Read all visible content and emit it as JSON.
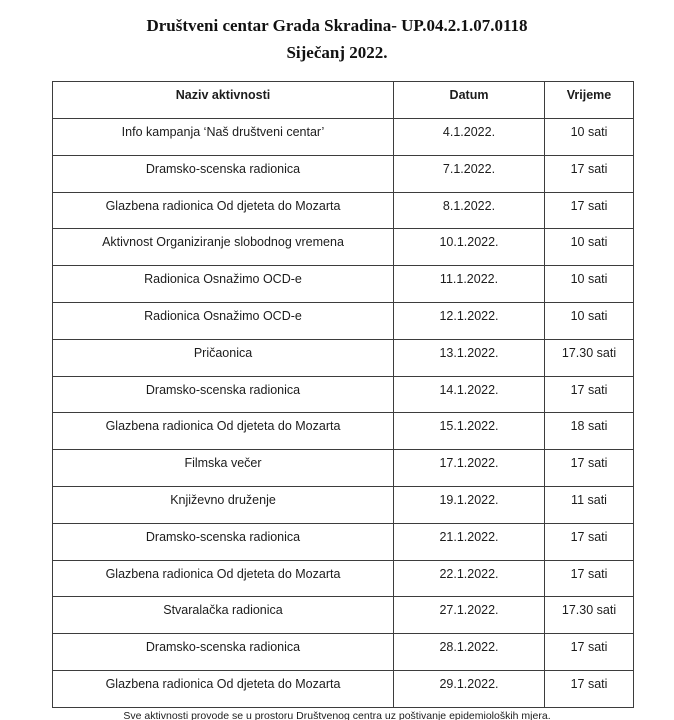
{
  "document": {
    "title_line1": "Društveni centar Grada Skradina- UP.04.2.1.07.0118",
    "title_line2": "Siječanj 2022.",
    "footer_note": "Sve aktivnosti provode se u prostoru Društvenog centra uz poštivanje epidemioloških mjera."
  },
  "table": {
    "columns": [
      "Naziv aktivnosti",
      "Datum",
      "Vrijeme"
    ],
    "column_keys": [
      "activity",
      "date",
      "time"
    ],
    "rows": [
      [
        "Info kampanja ‘Naš društveni centar’",
        "4.1.2022.",
        "10 sati"
      ],
      [
        "Dramsko-scenska radionica",
        "7.1.2022.",
        "17 sati"
      ],
      [
        "Glazbena radionica Od djeteta do Mozarta",
        "8.1.2022.",
        "17 sati"
      ],
      [
        "Aktivnost Organiziranje slobodnog vremena",
        "10.1.2022.",
        "10 sati"
      ],
      [
        "Radionica Osnažimo OCD-e",
        "11.1.2022.",
        "10 sati"
      ],
      [
        "Radionica Osnažimo OCD-e",
        "12.1.2022.",
        "10 sati"
      ],
      [
        "Pričaonica",
        "13.1.2022.",
        "17.30 sati"
      ],
      [
        "Dramsko-scenska radionica",
        "14.1.2022.",
        "17 sati"
      ],
      [
        "Glazbena radionica Od djeteta do Mozarta",
        "15.1.2022.",
        "18 sati"
      ],
      [
        "Filmska večer",
        "17.1.2022.",
        "17 sati"
      ],
      [
        "Književno druženje",
        "19.1.2022.",
        "11 sati"
      ],
      [
        "Dramsko-scenska radionica",
        "21.1.2022.",
        "17 sati"
      ],
      [
        "Glazbena radionica Od djeteta do Mozarta",
        "22.1.2022.",
        "17 sati"
      ],
      [
        "Stvaralačka radionica",
        "27.1.2022.",
        "17.30 sati"
      ],
      [
        "Dramsko-scenska radionica",
        "28.1.2022.",
        "17 sati"
      ],
      [
        "Glazbena radionica Od djeteta do Mozarta",
        "29.1.2022.",
        "17 sati"
      ]
    ]
  },
  "colors": {
    "border": "#3d3d3d",
    "text": "#1c1c1c",
    "background": "#ffffff"
  }
}
